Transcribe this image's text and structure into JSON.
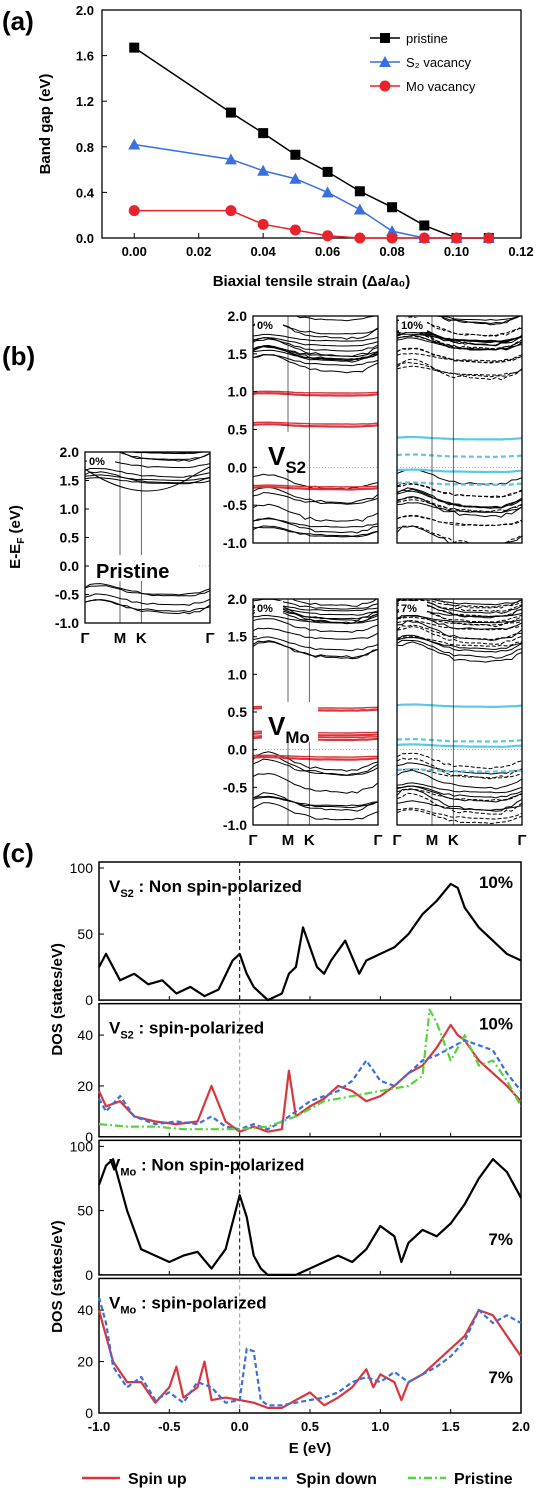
{
  "panels": {
    "a": "(a)",
    "b": "(b)",
    "c": "(c)"
  },
  "colors": {
    "pristine": "#000000",
    "s2": "#3a6fe0",
    "mo": "#e8232b",
    "red_band": "#d9363e",
    "cyan_band": "#5cc8e8",
    "spin_down": "#3a6fe0",
    "pristine_dos": "#55d43c"
  },
  "chart_data": [
    {
      "id": "a",
      "type": "line",
      "xlabel": "Biaxial tensile strain (Δa/a₀)",
      "ylabel": "Band gap (eV)",
      "xlim": [
        -0.01,
        0.12
      ],
      "ylim": [
        0,
        2.0
      ],
      "xticks": [
        "0.00",
        "0.02",
        "0.04",
        "0.06",
        "0.08",
        "0.10",
        "0.12"
      ],
      "yticks": [
        "0.0",
        "0.4",
        "0.8",
        "1.2",
        "1.6",
        "2.0"
      ],
      "legend_position": "top-right",
      "series": [
        {
          "name": "pristine",
          "marker": "square",
          "color": "#000000",
          "x": [
            0,
            0.03,
            0.04,
            0.05,
            0.06,
            0.07,
            0.08,
            0.09,
            0.1,
            0.11
          ],
          "y": [
            1.67,
            1.1,
            0.92,
            0.73,
            0.58,
            0.41,
            0.27,
            0.11,
            0.0,
            0.0
          ]
        },
        {
          "name": "S₂ vacancy",
          "marker": "triangle",
          "color": "#3a6fe0",
          "x": [
            0,
            0.03,
            0.04,
            0.05,
            0.06,
            0.07,
            0.08,
            0.09,
            0.1,
            0.11
          ],
          "y": [
            0.82,
            0.69,
            0.59,
            0.52,
            0.4,
            0.25,
            0.06,
            0.0,
            0.0,
            0.0
          ]
        },
        {
          "name": "Mo vacancy",
          "marker": "circle",
          "color": "#e8232b",
          "x": [
            0,
            0.03,
            0.04,
            0.05,
            0.06,
            0.07,
            0.08,
            0.09,
            0.1,
            0.11
          ],
          "y": [
            0.24,
            0.24,
            0.12,
            0.07,
            0.02,
            0.0,
            0.0,
            0.0,
            0.0,
            0.0
          ]
        }
      ]
    },
    {
      "id": "b",
      "type": "line",
      "ylabel": "E-E_F (eV)",
      "ylim": [
        -1.0,
        2.0
      ],
      "yticks": [
        "2.0",
        "1.5",
        "1.0",
        "0.5",
        "0.0",
        "-0.5",
        "-1.0"
      ],
      "kpath": [
        "Γ",
        "M",
        "K",
        "Γ"
      ],
      "subplots": [
        {
          "tag": "0%",
          "label": "Pristine",
          "defect_bands": [],
          "polarized": false
        },
        {
          "tag": "0%",
          "label": "V_S2",
          "defect_bands": [
            0.96,
            0.55,
            -0.28
          ],
          "polarized": false
        },
        {
          "tag": "10%",
          "label": "",
          "defect_bands": [
            0.38,
            0.15,
            -0.05,
            -0.22
          ],
          "polarized": true
        },
        {
          "tag": "0%",
          "label": "V_Mo",
          "defect_bands": [
            0.53,
            0.2,
            0.14,
            -0.12
          ],
          "polarized": false
        },
        {
          "tag": "7%",
          "label": "",
          "defect_bands": [
            0.58,
            0.12,
            0.05,
            -0.28
          ],
          "polarized": true
        }
      ]
    },
    {
      "id": "c",
      "type": "line",
      "xlabel": "E (eV)",
      "ylabel": "DOS (states/eV)",
      "xlim": [
        -1.0,
        2.0
      ],
      "xticks": [
        "-1.0",
        "-0.5",
        "0.0",
        "0.5",
        "1.0",
        "1.5",
        "2.0"
      ],
      "legend": [
        "Spin up",
        "Spin down",
        "Pristine"
      ],
      "subplots": [
        {
          "title": "V_S2 : Non spin-polarized",
          "strain": "10%",
          "ylim": [
            0,
            100
          ],
          "yticks": [
            "100",
            "50",
            "0"
          ],
          "series": [
            {
              "x": [
                -1.0,
                -0.95,
                -0.85,
                -0.75,
                -0.65,
                -0.55,
                -0.45,
                -0.35,
                -0.25,
                -0.15,
                -0.05,
                0.0,
                0.05,
                0.1,
                0.2,
                0.3,
                0.35,
                0.4,
                0.45,
                0.55,
                0.6,
                0.65,
                0.75,
                0.85,
                0.9,
                1.0,
                1.1,
                1.2,
                1.3,
                1.4,
                1.5,
                1.55,
                1.6,
                1.7,
                1.8,
                1.9,
                2.0
              ],
              "y": [
                25,
                35,
                15,
                20,
                12,
                15,
                5,
                10,
                3,
                8,
                30,
                35,
                20,
                10,
                0,
                5,
                20,
                25,
                55,
                25,
                20,
                30,
                45,
                20,
                30,
                35,
                40,
                50,
                65,
                75,
                88,
                85,
                70,
                55,
                45,
                35,
                30
              ]
            }
          ]
        },
        {
          "title": "V_S2 : spin-polarized",
          "strain": "10%",
          "ylim": [
            0,
            50
          ],
          "yticks": [
            "40",
            "20",
            "0"
          ],
          "series": [
            {
              "name": "Spin up",
              "x": [
                -1.0,
                -0.95,
                -0.85,
                -0.75,
                -0.6,
                -0.45,
                -0.3,
                -0.2,
                -0.1,
                0.0,
                0.1,
                0.2,
                0.3,
                0.35,
                0.4,
                0.5,
                0.6,
                0.7,
                0.8,
                0.9,
                1.0,
                1.1,
                1.2,
                1.3,
                1.4,
                1.5,
                1.55,
                1.6,
                1.7,
                1.8,
                1.9,
                2.0
              ],
              "y": [
                18,
                12,
                14,
                8,
                6,
                5,
                6,
                20,
                6,
                2,
                4,
                2,
                3,
                26,
                8,
                12,
                15,
                20,
                18,
                14,
                16,
                20,
                25,
                28,
                35,
                44,
                40,
                38,
                30,
                25,
                20,
                14
              ]
            },
            {
              "name": "Spin down",
              "x": [
                -1.0,
                -0.95,
                -0.85,
                -0.75,
                -0.6,
                -0.45,
                -0.3,
                -0.2,
                -0.1,
                0.0,
                0.1,
                0.2,
                0.3,
                0.4,
                0.5,
                0.6,
                0.7,
                0.8,
                0.9,
                1.0,
                1.1,
                1.2,
                1.3,
                1.4,
                1.5,
                1.6,
                1.7,
                1.8,
                1.9,
                2.0
              ],
              "y": [
                15,
                10,
                16,
                8,
                5,
                6,
                5,
                8,
                4,
                3,
                5,
                3,
                6,
                10,
                14,
                16,
                18,
                22,
                30,
                22,
                20,
                25,
                30,
                32,
                35,
                38,
                36,
                34,
                25,
                18
              ]
            },
            {
              "name": "Pristine",
              "x": [
                -1.0,
                -0.8,
                -0.6,
                -0.4,
                -0.2,
                0.0,
                0.2,
                0.4,
                0.6,
                0.8,
                1.0,
                1.2,
                1.3,
                1.35,
                1.4,
                1.5,
                1.6,
                1.7,
                1.8,
                1.9,
                2.0
              ],
              "y": [
                5,
                4,
                4,
                3,
                3,
                3,
                4,
                8,
                14,
                16,
                18,
                20,
                24,
                50,
                45,
                30,
                40,
                28,
                30,
                22,
                12
              ]
            }
          ]
        },
        {
          "title": "V_Mo : Non spin-polarized",
          "strain": "7%",
          "ylim": [
            0,
            100
          ],
          "yticks": [
            "100",
            "50",
            "0"
          ],
          "series": [
            {
              "x": [
                -1.0,
                -0.95,
                -0.9,
                -0.8,
                -0.7,
                -0.6,
                -0.5,
                -0.4,
                -0.3,
                -0.2,
                -0.1,
                0.0,
                0.05,
                0.1,
                0.15,
                0.2,
                0.3,
                0.4,
                0.5,
                0.6,
                0.7,
                0.8,
                0.9,
                1.0,
                1.1,
                1.15,
                1.2,
                1.3,
                1.4,
                1.5,
                1.6,
                1.7,
                1.8,
                1.9,
                2.0
              ],
              "y": [
                70,
                85,
                90,
                50,
                20,
                15,
                10,
                15,
                18,
                5,
                20,
                62,
                45,
                15,
                5,
                0,
                0,
                0,
                5,
                10,
                15,
                10,
                20,
                38,
                30,
                10,
                25,
                35,
                30,
                40,
                55,
                75,
                90,
                80,
                60
              ]
            }
          ]
        },
        {
          "title": "V_Mo : spin-polarized",
          "strain": "7%",
          "ylim": [
            0,
            50
          ],
          "yticks": [
            "40",
            "20",
            "0"
          ],
          "series": [
            {
              "name": "Spin up",
              "x": [
                -1.0,
                -0.95,
                -0.9,
                -0.8,
                -0.7,
                -0.6,
                -0.5,
                -0.45,
                -0.4,
                -0.3,
                -0.25,
                -0.2,
                -0.1,
                0.0,
                0.1,
                0.2,
                0.3,
                0.4,
                0.5,
                0.6,
                0.7,
                0.8,
                0.9,
                0.95,
                1.0,
                1.1,
                1.15,
                1.2,
                1.3,
                1.4,
                1.5,
                1.6,
                1.7,
                1.8,
                1.9,
                2.0
              ],
              "y": [
                40,
                30,
                20,
                12,
                12,
                4,
                10,
                18,
                6,
                10,
                20,
                5,
                6,
                5,
                4,
                2,
                2,
                5,
                8,
                3,
                6,
                10,
                17,
                10,
                15,
                12,
                5,
                12,
                15,
                20,
                25,
                30,
                40,
                38,
                30,
                22
              ]
            },
            {
              "name": "Spin down",
              "x": [
                -1.0,
                -0.95,
                -0.9,
                -0.8,
                -0.7,
                -0.6,
                -0.5,
                -0.4,
                -0.3,
                -0.2,
                -0.1,
                0.0,
                0.05,
                0.1,
                0.15,
                0.2,
                0.3,
                0.4,
                0.5,
                0.6,
                0.7,
                0.8,
                0.9,
                1.0,
                1.1,
                1.2,
                1.3,
                1.4,
                1.5,
                1.6,
                1.7,
                1.8,
                1.9,
                2.0
              ],
              "y": [
                45,
                35,
                18,
                10,
                14,
                5,
                8,
                4,
                12,
                10,
                4,
                5,
                25,
                24,
                5,
                3,
                3,
                4,
                5,
                6,
                8,
                12,
                14,
                12,
                16,
                12,
                15,
                18,
                22,
                28,
                40,
                35,
                38,
                35
              ]
            }
          ]
        }
      ]
    }
  ]
}
